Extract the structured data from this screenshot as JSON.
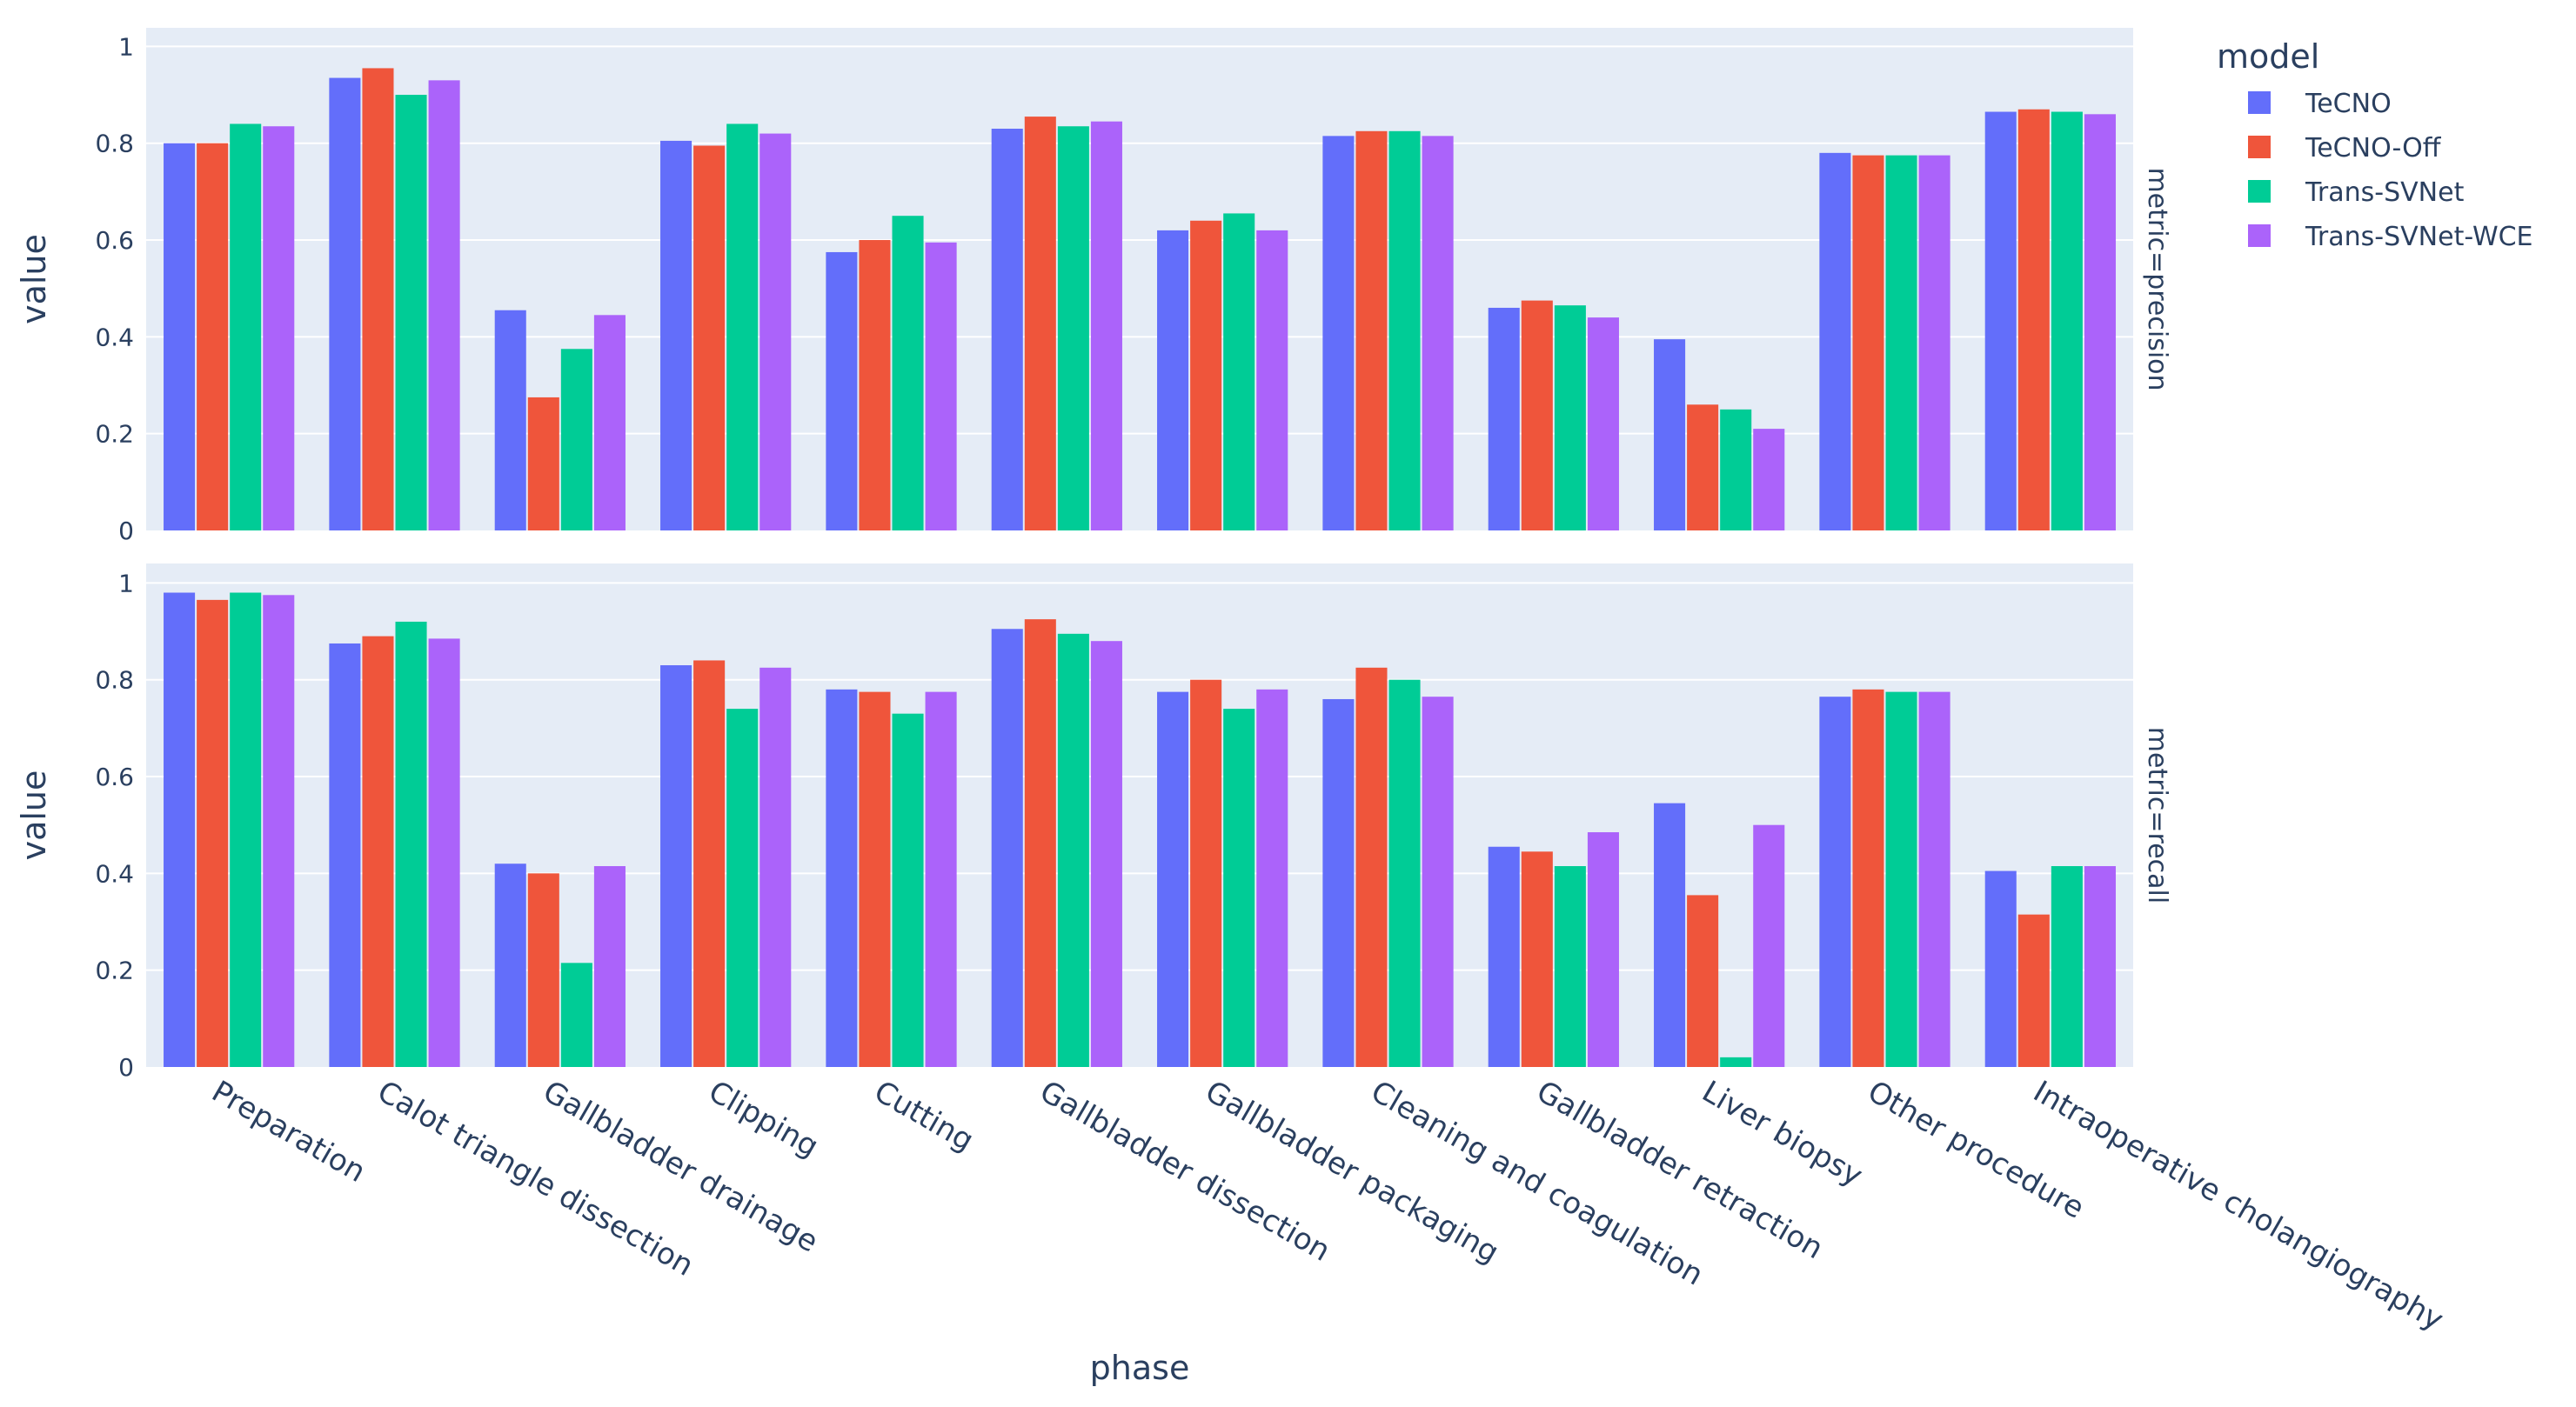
{
  "chart_data": {
    "type": "bar",
    "layout": "faceted-rows",
    "xlabel": "phase",
    "ylabel": "value",
    "ylim": [
      0,
      1
    ],
    "yticks": [
      0,
      0.2,
      0.4,
      0.6,
      0.8,
      1
    ],
    "ytick_labels": [
      "0",
      "0.2",
      "0.4",
      "0.6",
      "0.8",
      "1"
    ],
    "grid": true,
    "legend": {
      "title": "model",
      "position": "top-right"
    },
    "categories": [
      "Preparation",
      "Calot triangle dissection",
      "Gallbladder drainage",
      "Clipping",
      "Cutting",
      "Gallbladder dissection",
      "Gallbladder packaging",
      "Cleaning and coagulation",
      "Gallbladder retraction",
      "Liver biopsy",
      "Other procedure",
      "Intraoperative cholangiography"
    ],
    "series_names": [
      "TeCNO",
      "TeCNO-Off",
      "Trans-SVNet",
      "Trans-SVNet-WCE"
    ],
    "colors": [
      "#636efa",
      "#ef553b",
      "#00cc96",
      "#ab63fa"
    ],
    "facets": [
      {
        "label": "metric=precision",
        "series": [
          {
            "name": "TeCNO",
            "values": [
              0.8,
              0.935,
              0.455,
              0.805,
              0.575,
              0.83,
              0.62,
              0.815,
              0.46,
              0.395,
              0.78,
              0.865
            ]
          },
          {
            "name": "TeCNO-Off",
            "values": [
              0.8,
              0.955,
              0.275,
              0.795,
              0.6,
              0.855,
              0.64,
              0.825,
              0.475,
              0.26,
              0.775,
              0.87
            ]
          },
          {
            "name": "Trans-SVNet",
            "values": [
              0.84,
              0.9,
              0.375,
              0.84,
              0.65,
              0.835,
              0.655,
              0.825,
              0.465,
              0.25,
              0.775,
              0.865
            ]
          },
          {
            "name": "Trans-SVNet-WCE",
            "values": [
              0.835,
              0.93,
              0.445,
              0.82,
              0.595,
              0.845,
              0.62,
              0.815,
              0.44,
              0.21,
              0.775,
              0.86
            ]
          }
        ]
      },
      {
        "label": "metric=recall",
        "series": [
          {
            "name": "TeCNO",
            "values": [
              0.98,
              0.875,
              0.42,
              0.83,
              0.78,
              0.905,
              0.775,
              0.76,
              0.455,
              0.545,
              0.765,
              0.405
            ]
          },
          {
            "name": "TeCNO-Off",
            "values": [
              0.965,
              0.89,
              0.4,
              0.84,
              0.775,
              0.925,
              0.8,
              0.825,
              0.445,
              0.355,
              0.78,
              0.315
            ]
          },
          {
            "name": "Trans-SVNet",
            "values": [
              0.98,
              0.92,
              0.215,
              0.74,
              0.73,
              0.895,
              0.74,
              0.8,
              0.415,
              0.02,
              0.775,
              0.415
            ]
          },
          {
            "name": "Trans-SVNet-WCE",
            "values": [
              0.975,
              0.885,
              0.415,
              0.825,
              0.775,
              0.88,
              0.78,
              0.765,
              0.485,
              0.5,
              0.775,
              0.415
            ]
          }
        ]
      }
    ]
  }
}
